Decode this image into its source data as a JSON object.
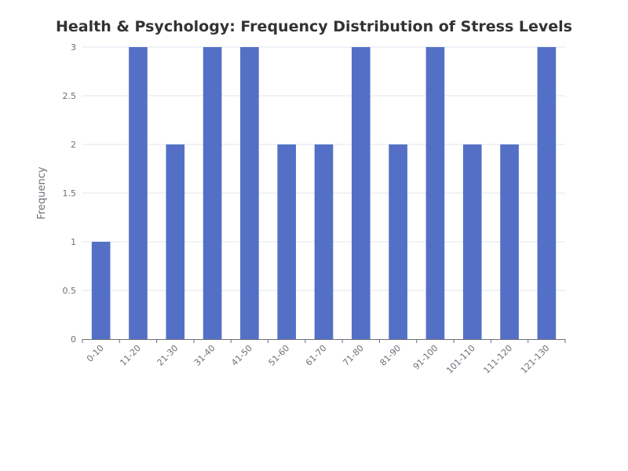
{
  "chart_data": {
    "type": "bar",
    "title": "Health & Psychology: Frequency Distribution of Stress Levels",
    "xlabel": "",
    "ylabel": "Frequency",
    "categories": [
      "0-10",
      "11-20",
      "21-30",
      "31-40",
      "41-50",
      "51-60",
      "61-70",
      "71-80",
      "81-90",
      "91-100",
      "101-110",
      "111-120",
      "121-130"
    ],
    "values": [
      1,
      3,
      2,
      3,
      3,
      2,
      2,
      3,
      2,
      3,
      2,
      2,
      3
    ],
    "ylim": [
      0,
      3
    ],
    "yticks": [
      "0",
      "0.5",
      "1",
      "1.5",
      "2",
      "2.5",
      "3"
    ],
    "grid": true,
    "bar_color": "#5470c6"
  }
}
